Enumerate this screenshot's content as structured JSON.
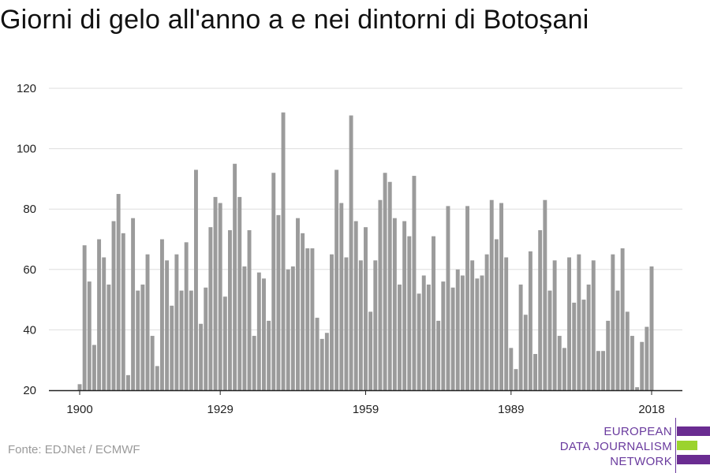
{
  "colors": {
    "bar": "#9b9b9b",
    "grid": "#dedede",
    "axis": "#222222",
    "logo_purple": "#6a2c91",
    "logo_green": "#9bd32e"
  },
  "source": "Fonte: EDJNet / ECMWF",
  "logo": {
    "line1": "EUROPEAN",
    "line2": "DATA JOURNALISM",
    "line3": "NETWORK"
  },
  "chart_data": {
    "type": "bar",
    "title": "Giorni di gelo all'anno a e nei dintorni di Botoșani",
    "xlabel": "",
    "ylabel": "",
    "ylim": [
      20,
      120
    ],
    "yticks": [
      20,
      40,
      60,
      80,
      100,
      120
    ],
    "xticks": [
      1900,
      1929,
      1959,
      1989,
      2018
    ],
    "grid": true,
    "legend": "none",
    "x_start": 1900,
    "series": [
      {
        "values": [
          22,
          68,
          56,
          35,
          70,
          64,
          55,
          76,
          85,
          72,
          25,
          77,
          53,
          55,
          65,
          38,
          28,
          70,
          63,
          48,
          65,
          53,
          69,
          53,
          93,
          42,
          54,
          74,
          84,
          82,
          51,
          73,
          95,
          84,
          61,
          73,
          38,
          59,
          57,
          43,
          92,
          78,
          112,
          60,
          61,
          77,
          72,
          67,
          67,
          44,
          37,
          39,
          65,
          93,
          82,
          64,
          111,
          76,
          63,
          74,
          46,
          63,
          83,
          92,
          89,
          77,
          55,
          76,
          71,
          91,
          52,
          58,
          55,
          71,
          43,
          56,
          81,
          54,
          60,
          58,
          81,
          63,
          57,
          58,
          65,
          83,
          70,
          82,
          64,
          34,
          27,
          55,
          45,
          66,
          32,
          73,
          83,
          53,
          63,
          38,
          34,
          64,
          49,
          65,
          50,
          55,
          63,
          33,
          33,
          43,
          65,
          53,
          67,
          46,
          38,
          21,
          36,
          41,
          61
        ]
      }
    ]
  }
}
